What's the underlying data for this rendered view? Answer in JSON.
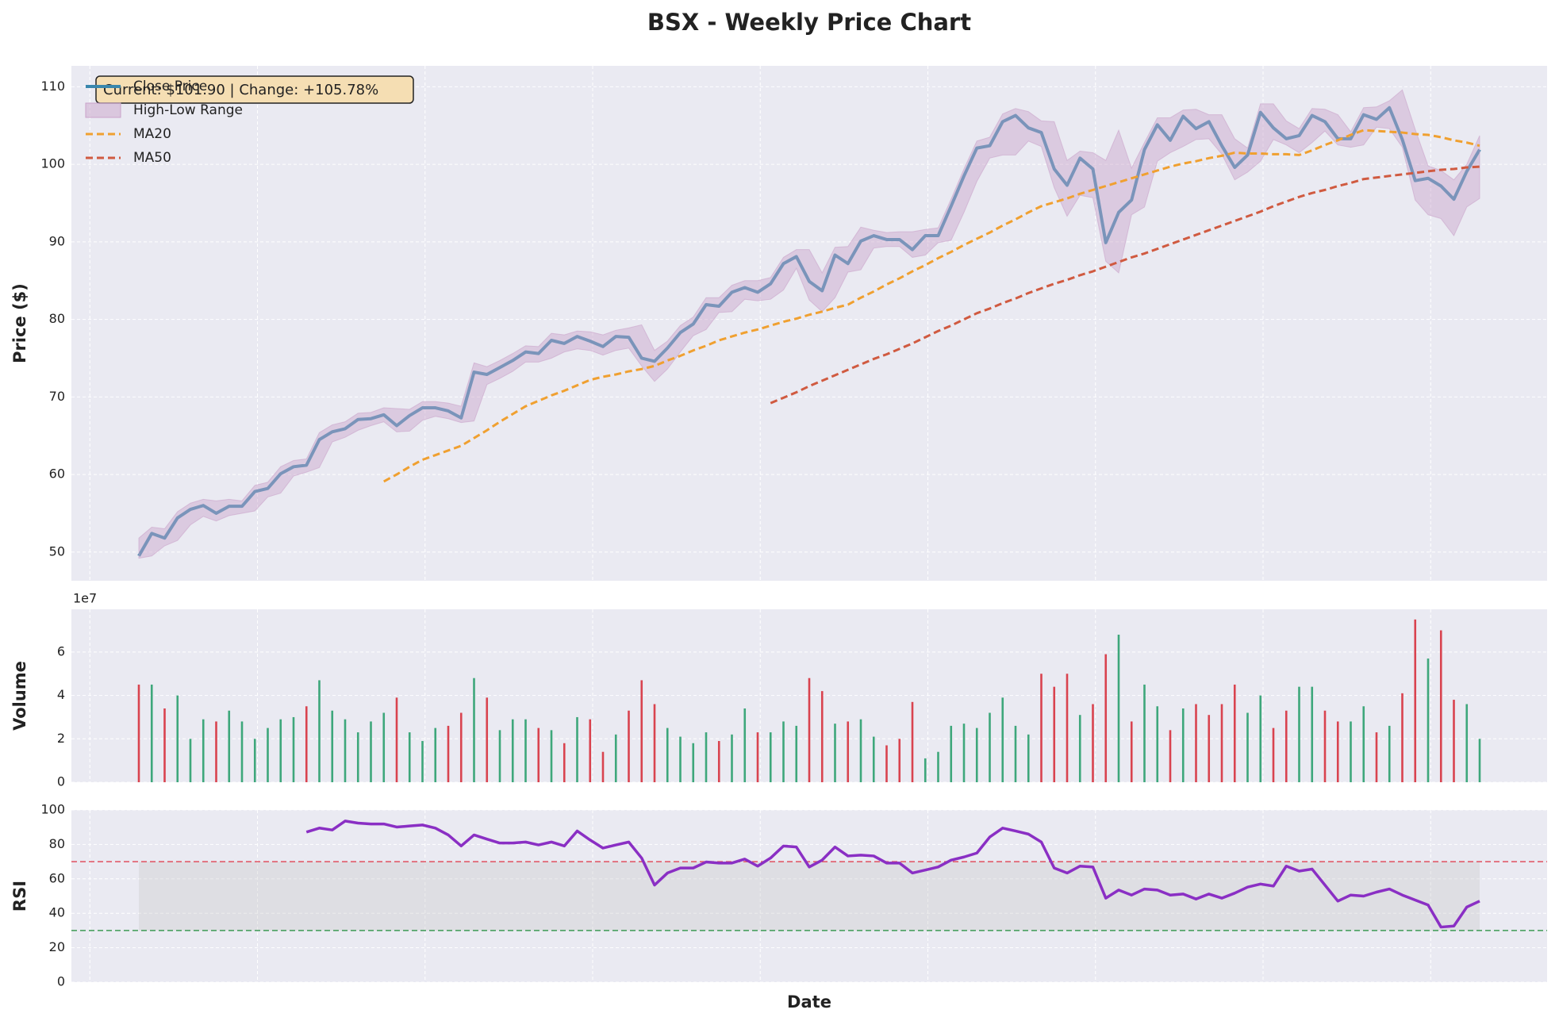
{
  "chart_data": [
    {
      "type": "line",
      "title": "BSX - Weekly Price Chart",
      "ylabel": "Price ($)",
      "annotation": "Current: $101.90 | Change: +105.78%",
      "legend": "upper left",
      "grid": true,
      "ylim": [
        46.3,
        112.7
      ],
      "yticks": [
        50,
        60,
        70,
        80,
        90,
        100,
        110
      ],
      "series": [
        {
          "name": "Close Price",
          "color": "#3a87ad",
          "linestyle": "solid",
          "values": [
            49.5,
            52.4,
            51.8,
            54.4,
            55.5,
            56.0,
            55.0,
            55.9,
            55.9,
            57.8,
            58.2,
            60.1,
            61.0,
            61.2,
            64.5,
            65.5,
            65.9,
            67.1,
            67.2,
            67.7,
            66.3,
            67.6,
            68.6,
            68.6,
            68.2,
            67.3,
            73.2,
            72.9,
            73.8,
            74.7,
            75.8,
            75.6,
            77.3,
            76.9,
            77.8,
            77.2,
            76.5,
            77.8,
            77.7,
            75.0,
            74.6,
            76.3,
            78.3,
            79.4,
            81.9,
            81.7,
            83.5,
            84.1,
            83.5,
            84.6,
            87.2,
            88.1,
            84.9,
            83.7,
            88.3,
            87.2,
            90.1,
            90.8,
            90.3,
            90.3,
            89.0,
            90.8,
            90.8,
            94.6,
            98.5,
            102.1,
            102.4,
            105.5,
            106.3,
            104.7,
            104.1,
            99.4,
            97.3,
            100.8,
            99.4,
            89.9,
            93.8,
            95.4,
            101.9,
            105.1,
            103.1,
            106.2,
            104.6,
            105.5,
            102.4,
            99.6,
            101.2,
            106.7,
            104.7,
            103.3,
            103.7,
            106.3,
            105.5,
            103.3,
            103.3,
            106.4,
            105.8,
            107.3,
            103.2,
            97.9,
            98.2,
            97.2,
            95.5,
            99.1,
            101.9
          ]
        },
        {
          "name": "High-Low Range",
          "color": "#c9a3c9",
          "kind": "band",
          "high": [
            51.8,
            53.2,
            53.0,
            55.2,
            56.3,
            56.8,
            56.6,
            56.8,
            56.6,
            58.6,
            59.0,
            61.0,
            61.8,
            62.0,
            65.4,
            66.4,
            66.8,
            67.9,
            68.0,
            68.6,
            68.5,
            68.4,
            69.4,
            69.4,
            69.2,
            68.8,
            74.4,
            73.9,
            74.7,
            75.6,
            76.6,
            76.5,
            78.2,
            78.0,
            78.5,
            78.4,
            78.0,
            78.6,
            78.9,
            79.3,
            76.0,
            77.2,
            79.2,
            80.3,
            82.8,
            82.8,
            84.4,
            85.0,
            85.0,
            85.4,
            88.0,
            89.0,
            89.0,
            86.0,
            89.3,
            89.4,
            91.9,
            91.5,
            91.2,
            91.3,
            91.3,
            91.6,
            91.8,
            95.5,
            99.4,
            103.0,
            103.5,
            106.5,
            107.2,
            106.8,
            105.6,
            105.5,
            100.5,
            101.7,
            101.5,
            100.5,
            104.4,
            99.5,
            102.8,
            106.0,
            106.0,
            107.0,
            107.1,
            106.4,
            106.4,
            103.3,
            102.1,
            107.8,
            107.8,
            105.6,
            104.6,
            107.2,
            107.1,
            106.4,
            104.2,
            107.3,
            107.4,
            108.2,
            109.6,
            104.5,
            99.8,
            99.2,
            98.0,
            100.0,
            103.7
          ],
          "low": [
            49.2,
            49.5,
            50.8,
            51.5,
            53.5,
            54.6,
            54.0,
            54.7,
            55.0,
            55.3,
            57.1,
            57.6,
            59.8,
            60.3,
            60.9,
            64.2,
            64.8,
            65.7,
            66.3,
            66.8,
            65.5,
            65.6,
            67.0,
            67.5,
            67.2,
            66.7,
            66.9,
            71.6,
            72.4,
            73.3,
            74.5,
            74.5,
            75.0,
            75.8,
            76.2,
            76.0,
            75.4,
            76.0,
            76.3,
            74.0,
            72.0,
            73.6,
            75.8,
            77.9,
            78.7,
            80.9,
            81.0,
            82.6,
            82.4,
            82.6,
            83.8,
            86.6,
            82.5,
            81.0,
            82.8,
            86.1,
            86.4,
            89.2,
            89.4,
            89.4,
            88.0,
            88.3,
            89.9,
            90.2,
            93.8,
            97.8,
            100.8,
            101.2,
            101.2,
            103.0,
            102.3,
            97.0,
            93.3,
            96.0,
            95.7,
            87.5,
            86.0,
            93.5,
            94.5,
            100.4,
            101.5,
            102.3,
            103.2,
            103.3,
            101.3,
            98.0,
            99.0,
            100.4,
            103.2,
            102.5,
            101.5,
            102.8,
            104.3,
            102.5,
            102.2,
            102.5,
            104.8,
            104.6,
            102.2,
            95.4,
            93.5,
            93.0,
            90.8,
            94.5,
            95.6
          ]
        },
        {
          "name": "MA20",
          "color": "#f0a030",
          "linestyle": "dashed",
          "values": [
            null,
            null,
            null,
            null,
            null,
            null,
            null,
            null,
            null,
            null,
            null,
            null,
            null,
            null,
            null,
            null,
            null,
            null,
            null,
            59.1,
            60.0,
            61.0,
            61.9,
            62.5,
            63.1,
            63.7,
            64.7,
            65.7,
            66.8,
            67.8,
            68.8,
            69.5,
            70.2,
            70.8,
            71.5,
            72.2,
            72.6,
            72.9,
            73.3,
            73.6,
            74.0,
            74.7,
            75.3,
            76.0,
            76.6,
            77.3,
            77.8,
            78.3,
            78.7,
            79.2,
            79.7,
            80.1,
            80.6,
            81.0,
            81.5,
            81.9,
            82.8,
            83.6,
            84.5,
            85.3,
            86.2,
            87.0,
            87.9,
            88.7,
            89.6,
            90.4,
            91.2,
            92.1,
            92.9,
            93.8,
            94.6,
            95.1,
            95.6,
            96.2,
            96.7,
            97.2,
            97.7,
            98.2,
            98.7,
            99.2,
            99.7,
            100.1,
            100.4,
            100.8,
            101.1,
            101.5,
            101.4,
            101.4,
            101.3,
            101.3,
            101.2,
            101.8,
            102.5,
            103.1,
            103.8,
            104.4,
            104.3,
            104.2,
            104.1,
            103.9,
            103.8,
            103.5,
            103.1,
            102.8,
            102.4
          ]
        },
        {
          "name": "MA50",
          "color": "#d05a40",
          "linestyle": "dashed",
          "values": [
            null,
            null,
            null,
            null,
            null,
            null,
            null,
            null,
            null,
            null,
            null,
            null,
            null,
            null,
            null,
            null,
            null,
            null,
            null,
            null,
            null,
            null,
            null,
            null,
            null,
            null,
            null,
            null,
            null,
            null,
            null,
            null,
            null,
            null,
            null,
            null,
            null,
            null,
            null,
            null,
            null,
            null,
            null,
            null,
            null,
            null,
            null,
            null,
            null,
            69.2,
            69.9,
            70.6,
            71.4,
            72.1,
            72.8,
            73.5,
            74.2,
            74.9,
            75.5,
            76.2,
            76.9,
            77.7,
            78.5,
            79.2,
            80.0,
            80.8,
            81.4,
            82.1,
            82.7,
            83.4,
            84.0,
            84.6,
            85.1,
            85.7,
            86.2,
            86.8,
            87.4,
            88.0,
            88.5,
            89.1,
            89.7,
            90.3,
            90.9,
            91.5,
            92.1,
            92.7,
            93.3,
            93.9,
            94.6,
            95.2,
            95.8,
            96.3,
            96.7,
            97.2,
            97.6,
            98.1,
            98.3,
            98.5,
            98.7,
            98.9,
            99.1,
            99.3,
            99.4,
            99.6,
            99.7
          ]
        }
      ]
    },
    {
      "type": "bar",
      "ylabel": "Volume",
      "offset_label": "1e7",
      "grid": true,
      "ylim": [
        0,
        7.97
      ],
      "yticks": [
        0,
        2,
        4,
        6
      ],
      "values": [
        4.5,
        4.5,
        3.4,
        4.0,
        2.0,
        2.9,
        2.8,
        3.3,
        2.8,
        2.0,
        2.5,
        2.9,
        3.0,
        3.5,
        4.7,
        3.3,
        2.9,
        2.3,
        2.8,
        3.2,
        3.9,
        2.3,
        1.9,
        2.5,
        2.6,
        3.2,
        4.8,
        3.9,
        2.4,
        2.9,
        2.9,
        2.5,
        2.4,
        1.8,
        3.0,
        2.9,
        1.4,
        2.2,
        3.3,
        4.7,
        3.6,
        2.5,
        2.1,
        1.8,
        2.3,
        1.9,
        2.2,
        3.4,
        2.3,
        2.3,
        2.8,
        2.6,
        4.8,
        4.2,
        2.7,
        2.8,
        2.9,
        2.1,
        1.7,
        2.0,
        3.7,
        1.1,
        1.4,
        2.6,
        2.7,
        2.5,
        3.2,
        3.9,
        2.6,
        2.2,
        5.0,
        4.4,
        5.0,
        3.1,
        3.6,
        5.9,
        6.8,
        2.8,
        4.5,
        3.5,
        2.4,
        3.4,
        3.6,
        3.1,
        3.6,
        4.5,
        3.2,
        4.0,
        2.5,
        3.3,
        4.4,
        4.4,
        3.3,
        2.8,
        2.8,
        3.5,
        2.3,
        2.6,
        4.1,
        7.5,
        5.7,
        7.0,
        3.8,
        3.6,
        2.0
      ],
      "colors": [
        "#d9434f",
        "#3ea77b",
        "#d9434f",
        "#3ea77b",
        "#3ea77b",
        "#3ea77b",
        "#d9434f",
        "#3ea77b",
        "#3ea77b",
        "#3ea77b",
        "#3ea77b",
        "#3ea77b",
        "#3ea77b",
        "#d9434f",
        "#3ea77b",
        "#3ea77b",
        "#3ea77b",
        "#3ea77b",
        "#3ea77b",
        "#3ea77b",
        "#d9434f",
        "#3ea77b",
        "#3ea77b",
        "#3ea77b",
        "#d9434f",
        "#d9434f",
        "#3ea77b",
        "#d9434f",
        "#3ea77b",
        "#3ea77b",
        "#3ea77b",
        "#d9434f",
        "#3ea77b",
        "#d9434f",
        "#3ea77b",
        "#d9434f",
        "#d9434f",
        "#3ea77b",
        "#d9434f",
        "#d9434f",
        "#d9434f",
        "#3ea77b",
        "#3ea77b",
        "#3ea77b",
        "#3ea77b",
        "#d9434f",
        "#3ea77b",
        "#3ea77b",
        "#d9434f",
        "#3ea77b",
        "#3ea77b",
        "#3ea77b",
        "#d9434f",
        "#d9434f",
        "#3ea77b",
        "#d9434f",
        "#3ea77b",
        "#3ea77b",
        "#d9434f",
        "#d9434f",
        "#d9434f",
        "#3ea77b",
        "#3ea77b",
        "#3ea77b",
        "#3ea77b",
        "#3ea77b",
        "#3ea77b",
        "#3ea77b",
        "#3ea77b",
        "#3ea77b",
        "#d9434f",
        "#d9434f",
        "#d9434f",
        "#3ea77b",
        "#d9434f",
        "#d9434f",
        "#3ea77b",
        "#d9434f",
        "#3ea77b",
        "#3ea77b",
        "#d9434f",
        "#3ea77b",
        "#d9434f",
        "#d9434f",
        "#d9434f",
        "#d9434f",
        "#3ea77b",
        "#3ea77b",
        "#d9434f",
        "#d9434f",
        "#3ea77b",
        "#3ea77b",
        "#d9434f",
        "#d9434f",
        "#3ea77b",
        "#3ea77b",
        "#d9434f",
        "#3ea77b",
        "#d9434f",
        "#d9434f",
        "#3ea77b",
        "#d9434f",
        "#d9434f",
        "#3ea77b",
        "#3ea77b"
      ]
    },
    {
      "type": "line",
      "ylabel": "RSI",
      "xlabel": "Date",
      "grid": true,
      "color": "#8a2fc4",
      "ylim": [
        0,
        100
      ],
      "yticks": [
        0,
        20,
        40,
        60,
        80,
        100
      ],
      "band": [
        30,
        70
      ],
      "hlines": [
        {
          "value": 70,
          "color": "#e0505f"
        },
        {
          "value": 30,
          "color": "#3e9a55"
        }
      ],
      "values": [
        null,
        null,
        null,
        null,
        null,
        null,
        null,
        null,
        null,
        null,
        null,
        null,
        null,
        87.2,
        89.5,
        88.4,
        93.6,
        92.4,
        91.9,
        91.9,
        90.1,
        90.7,
        91.3,
        89.5,
        85.5,
        79.1,
        85.5,
        83.1,
        80.8,
        80.8,
        81.4,
        79.7,
        81.4,
        79.1,
        87.8,
        82.6,
        77.9,
        79.7,
        81.4,
        72.1,
        56.4,
        63.4,
        66.3,
        66.3,
        69.8,
        69.2,
        69.2,
        71.5,
        67.4,
        72.1,
        79.1,
        78.5,
        66.9,
        70.9,
        78.5,
        73.3,
        73.8,
        73.3,
        69.2,
        69.2,
        63.4,
        65.1,
        66.9,
        70.9,
        72.7,
        75.0,
        84.3,
        89.5,
        87.8,
        86.0,
        81.4,
        66.3,
        63.4,
        67.4,
        66.9,
        48.8,
        53.5,
        50.6,
        54.1,
        53.5,
        50.6,
        51.2,
        48.3,
        51.2,
        48.8,
        51.7,
        55.2,
        57.0,
        55.8,
        67.4,
        64.5,
        65.7,
        56.4,
        47.1,
        50.6,
        50.0,
        52.3,
        54.1,
        50.6,
        47.7,
        44.8,
        32.0,
        32.6,
        43.6,
        47.1
      ]
    }
  ]
}
